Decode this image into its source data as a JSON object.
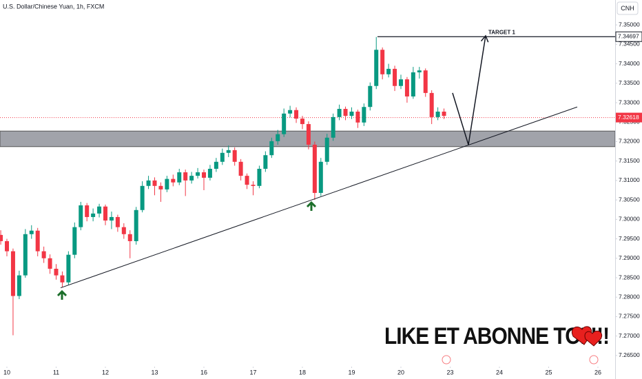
{
  "chart_data": {
    "type": "candlestick",
    "title": "U.S. Dollar/Chinese Yuan, 1h, FXCM",
    "currency": "CNH",
    "up_color": "#089981",
    "down_color": "#f23645",
    "xlim": [
      -0.14,
      12.35
    ],
    "xticks": [
      {
        "value": 0,
        "label": "10"
      },
      {
        "value": 1,
        "label": "11"
      },
      {
        "value": 2,
        "label": "12"
      },
      {
        "value": 3,
        "label": "13"
      },
      {
        "value": 4,
        "label": "16"
      },
      {
        "value": 5,
        "label": "17"
      },
      {
        "value": 6,
        "label": "18"
      },
      {
        "value": 7,
        "label": "19"
      },
      {
        "value": 8,
        "label": "20"
      },
      {
        "value": 9,
        "label": "23"
      },
      {
        "value": 10,
        "label": "24"
      },
      {
        "value": 11,
        "label": "25"
      },
      {
        "value": 12,
        "label": "26"
      }
    ],
    "ylim": [
      7.2625,
      7.3564
    ],
    "yticks": [
      {
        "value": 7.35,
        "label": "7.35000"
      },
      {
        "value": 7.345,
        "label": "7.34500"
      },
      {
        "value": 7.34,
        "label": "7.34000"
      },
      {
        "value": 7.335,
        "label": "7.33500"
      },
      {
        "value": 7.33,
        "label": "7.33000"
      },
      {
        "value": 7.325,
        "label": "7.32500"
      },
      {
        "value": 7.32,
        "label": "7.32000"
      },
      {
        "value": 7.315,
        "label": "7.31500"
      },
      {
        "value": 7.31,
        "label": "7.31000"
      },
      {
        "value": 7.305,
        "label": "7.30500"
      },
      {
        "value": 7.3,
        "label": "7.30000"
      },
      {
        "value": 7.295,
        "label": "7.29500"
      },
      {
        "value": 7.29,
        "label": "7.29000"
      },
      {
        "value": 7.285,
        "label": "7.28500"
      },
      {
        "value": 7.28,
        "label": "7.28000"
      },
      {
        "value": 7.275,
        "label": "7.27500"
      },
      {
        "value": 7.27,
        "label": "7.27000"
      },
      {
        "value": 7.265,
        "label": "7.26500"
      }
    ],
    "x": [
      -0.125,
      0,
      0.125,
      0.25,
      0.375,
      0.5,
      0.625,
      0.75,
      0.875,
      1,
      1.125,
      1.25,
      1.375,
      1.5,
      1.625,
      1.75,
      1.875,
      2,
      2.125,
      2.25,
      2.375,
      2.5,
      2.625,
      2.75,
      2.875,
      3,
      3.125,
      3.25,
      3.375,
      3.5,
      3.625,
      3.75,
      3.875,
      4,
      4.125,
      4.25,
      4.375,
      4.5,
      4.625,
      4.75,
      4.875,
      5,
      5.125,
      5.25,
      5.375,
      5.5,
      5.625,
      5.75,
      5.875,
      6,
      6.125,
      6.25,
      6.375,
      6.5,
      6.625,
      6.75,
      6.875,
      7,
      7.125,
      7.25,
      7.375,
      7.5,
      7.625,
      7.75,
      7.875,
      8,
      8.125,
      8.25,
      8.375,
      8.5,
      8.625,
      8.75,
      8.875
    ],
    "open": [
      7.296,
      7.2944,
      7.2918,
      7.2803,
      7.2856,
      7.2962,
      7.2971,
      7.2918,
      7.29,
      7.2873,
      7.2856,
      7.2838,
      7.2909,
      7.298,
      7.3036,
      7.3006,
      7.3015,
      7.3033,
      7.2997,
      7.3006,
      7.298,
      7.2962,
      7.2944,
      7.3024,
      7.3086,
      7.31,
      7.3086,
      7.3077,
      7.3104,
      7.3095,
      7.3121,
      7.31,
      7.3112,
      7.3121,
      7.3107,
      7.313,
      7.3148,
      7.3171,
      7.3178,
      7.3148,
      7.3112,
      7.3089,
      7.3086,
      7.313,
      7.3165,
      7.3201,
      7.3219,
      7.3272,
      7.3281,
      7.3259,
      7.3245,
      7.3192,
      7.3068,
      7.3148,
      7.321,
      7.3263,
      7.3284,
      7.3266,
      7.3277,
      7.3249,
      7.3289,
      7.3343,
      7.3436,
      7.3373,
      7.3387,
      7.3343,
      7.336,
      7.3316,
      7.3378,
      7.3383,
      7.3325,
      7.3263,
      7.3277
    ],
    "high": [
      7.2972,
      7.295,
      7.2925,
      7.2868,
      7.2975,
      7.2985,
      7.2978,
      7.293,
      7.291,
      7.2885,
      7.2866,
      7.2918,
      7.2992,
      7.3045,
      7.3042,
      7.3028,
      7.304,
      7.3038,
      7.302,
      7.3012,
      7.299,
      7.2972,
      7.3032,
      7.3098,
      7.3112,
      7.3108,
      7.3095,
      7.3112,
      7.3115,
      7.313,
      7.3128,
      7.3122,
      7.3132,
      7.3128,
      7.314,
      7.3158,
      7.3182,
      7.319,
      7.3185,
      7.3155,
      7.3118,
      7.3098,
      7.3138,
      7.3175,
      7.321,
      7.323,
      7.3285,
      7.3292,
      7.3288,
      7.3266,
      7.3252,
      7.32,
      7.3158,
      7.322,
      7.3272,
      7.3295,
      7.329,
      7.3288,
      7.3282,
      7.3298,
      7.3352,
      7.3469,
      7.3442,
      7.34,
      7.3395,
      7.3372,
      7.3366,
      7.3392,
      7.3392,
      7.3388,
      7.3332,
      7.3288,
      7.3285
    ],
    "low": [
      7.2935,
      7.2905,
      7.2702,
      7.2795,
      7.285,
      7.295,
      7.2905,
      7.2888,
      7.286,
      7.2845,
      7.2826,
      7.2832,
      7.29,
      7.2972,
      7.2995,
      7.2995,
      7.3005,
      7.2985,
      7.2975,
      7.2968,
      7.295,
      7.29,
      7.2935,
      7.3018,
      7.3078,
      7.3062,
      7.3045,
      7.307,
      7.3085,
      7.3088,
      7.306,
      7.3092,
      7.3105,
      7.3075,
      7.31,
      7.3122,
      7.314,
      7.316,
      7.3138,
      7.31,
      7.3078,
      7.3062,
      7.308,
      7.3122,
      7.3158,
      7.3192,
      7.3212,
      7.3262,
      7.3248,
      7.3232,
      7.318,
      7.305,
      7.306,
      7.314,
      7.3202,
      7.3255,
      7.3255,
      7.3258,
      7.3235,
      7.324,
      7.328,
      7.3335,
      7.336,
      7.3365,
      7.333,
      7.3335,
      7.33,
      7.331,
      7.3362,
      7.3315,
      7.3245,
      7.3255,
      7.3258
    ],
    "close": [
      7.2944,
      7.2918,
      7.2803,
      7.2856,
      7.2962,
      7.2971,
      7.2918,
      7.29,
      7.2873,
      7.2856,
      7.2838,
      7.2909,
      7.298,
      7.3036,
      7.3006,
      7.3015,
      7.3033,
      7.2997,
      7.3006,
      7.298,
      7.2962,
      7.2944,
      7.3024,
      7.3086,
      7.31,
      7.3086,
      7.3077,
      7.3104,
      7.3095,
      7.3121,
      7.31,
      7.3112,
      7.3121,
      7.3107,
      7.313,
      7.3148,
      7.3171,
      7.3178,
      7.3148,
      7.3112,
      7.3089,
      7.3086,
      7.313,
      7.3165,
      7.3201,
      7.3219,
      7.3272,
      7.3281,
      7.3259,
      7.3245,
      7.3192,
      7.3068,
      7.3148,
      7.321,
      7.3263,
      7.3284,
      7.3266,
      7.3277,
      7.3249,
      7.3289,
      7.3343,
      7.3436,
      7.3373,
      7.3387,
      7.3343,
      7.336,
      7.3316,
      7.3378,
      7.3383,
      7.3325,
      7.3263,
      7.3277,
      7.3266
    ],
    "last_price": 7.32618,
    "target": {
      "label": "TARGET 1",
      "price": 7.34697,
      "x_start": 7.524
    },
    "zone": [
      7.3187,
      7.3227
    ],
    "trend_line": {
      "x": [
        1.091,
        11.58
      ],
      "y": [
        7.2824,
        7.3289
      ]
    },
    "projection": {
      "x": [
        9.049,
        9.371,
        9.72
      ],
      "y": [
        7.3325,
        7.3192,
        7.3472
      ]
    },
    "watermark": "LIKE ET ABONNE TOI !!!"
  }
}
